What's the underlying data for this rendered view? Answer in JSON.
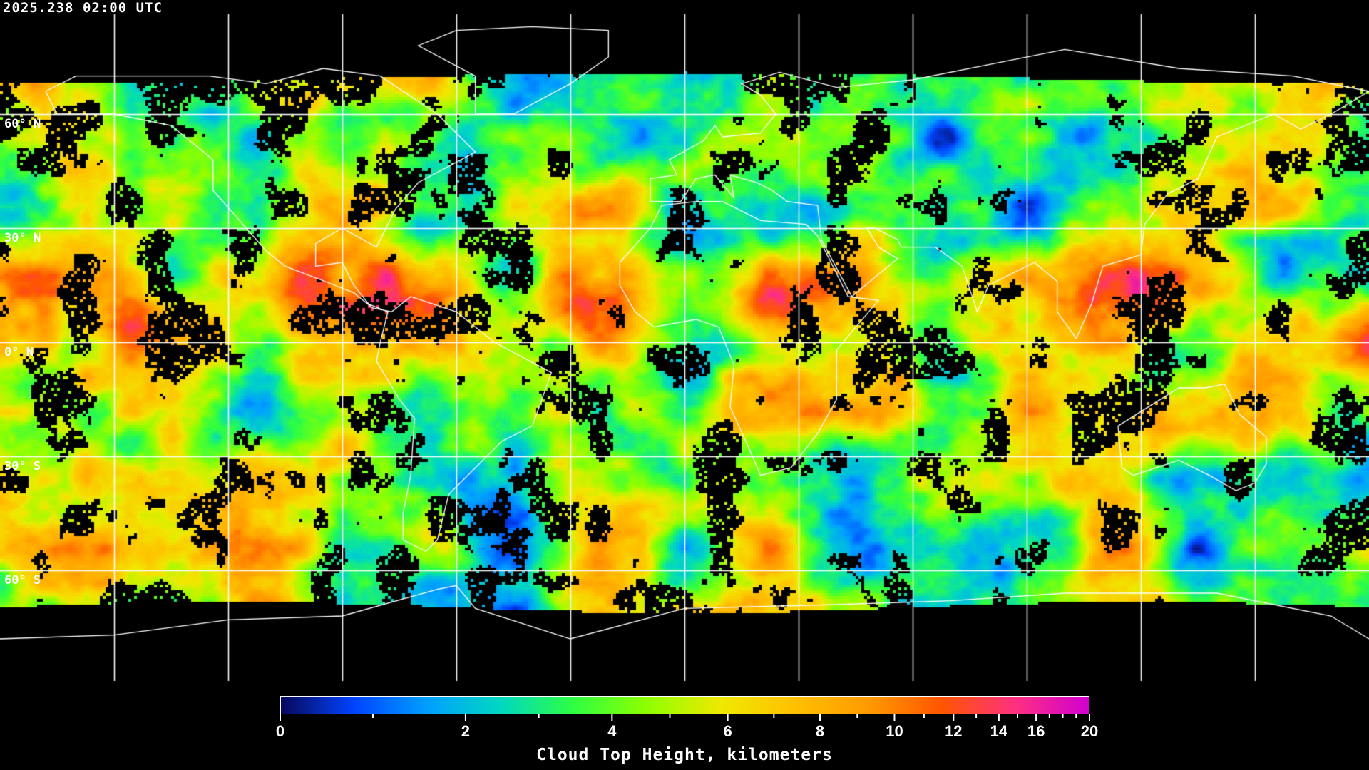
{
  "header": {
    "timestamp": "2025.238 02:00 UTC"
  },
  "map": {
    "projection": "equirectangular",
    "graticule_step_degrees": 30,
    "lat_labels": [
      "60° N",
      "30° N",
      "0° N",
      "30° S",
      "60° S"
    ],
    "coastlines_color": "#ffffff",
    "gridline_color": "#ffffff",
    "no_data_color": "#000000"
  },
  "colorbar": {
    "title": "Cloud Top Height, kilometers",
    "major_ticks": [
      "0",
      "2",
      "4",
      "6",
      "8",
      "10",
      "12",
      "14",
      "16",
      "20"
    ],
    "minor_ticks": [
      1,
      3,
      5,
      7,
      9,
      11,
      13,
      15,
      17,
      18,
      19
    ],
    "range_km": [
      0,
      20
    ],
    "colors": [
      "#08085a",
      "#0044ff",
      "#00a0ff",
      "#00d8c0",
      "#30ff40",
      "#90ff00",
      "#f0e800",
      "#ffc000",
      "#ff9a00",
      "#ff5500",
      "#ff3080",
      "#d000d0"
    ]
  }
}
